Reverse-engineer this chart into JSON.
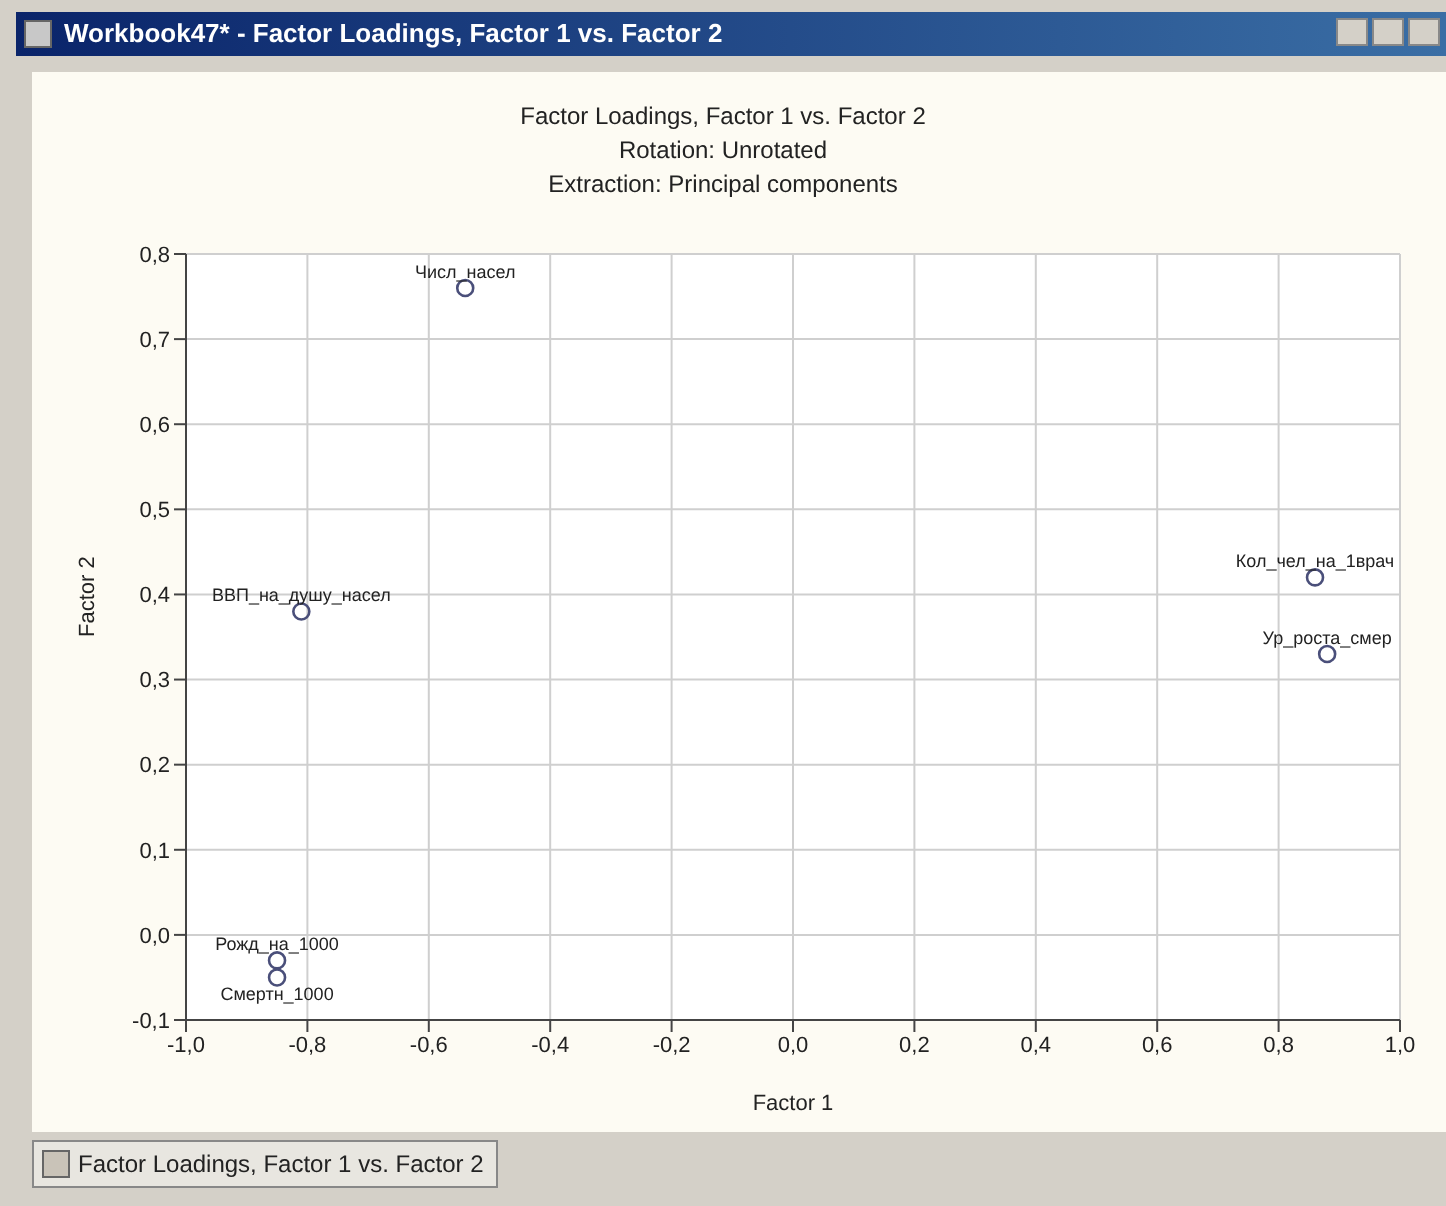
{
  "chart_data": {
    "type": "scatter",
    "title": "Factor Loadings, Factor 1 vs. Factor 2",
    "subtitle": "Rotation: Unrotated\nExtraction: Principal components",
    "xlabel": "Factor 1",
    "ylabel": "Factor 2",
    "x": [
      -0.54,
      -0.81,
      0.86,
      0.88,
      -0.85,
      -0.85
    ],
    "series": [
      {
        "color": "#4a4f7a",
        "values": [
          0.76,
          0.38,
          0.42,
          0.33,
          -0.03,
          -0.05
        ]
      }
    ],
    "marker": "circle",
    "grid": true,
    "legend": false,
    "xlim": [
      -1,
      1
    ],
    "xticks": [
      {
        "value": -1,
        "label": "-1,0"
      },
      {
        "value": -0.8,
        "label": "-0,8"
      },
      {
        "value": -0.6,
        "label": "-0,6"
      },
      {
        "value": -0.4,
        "label": "-0,4"
      },
      {
        "value": -0.2,
        "label": "-0,2"
      },
      {
        "value": 0,
        "label": "0,0"
      },
      {
        "value": 0.2,
        "label": "0,2"
      },
      {
        "value": 0.4,
        "label": "0,4"
      },
      {
        "value": 0.6,
        "label": "0,6"
      },
      {
        "value": 0.8,
        "label": "0,8"
      },
      {
        "value": 1,
        "label": "1,0"
      }
    ],
    "ylim": [
      -0.1,
      0.8
    ],
    "yticks": [
      {
        "value": -0.1,
        "label": "-0,1"
      },
      {
        "value": 0,
        "label": "0,0"
      },
      {
        "value": 0.1,
        "label": "0,1"
      },
      {
        "value": 0.2,
        "label": "0,2"
      },
      {
        "value": 0.3,
        "label": "0,3"
      },
      {
        "value": 0.4,
        "label": "0,4"
      },
      {
        "value": 0.5,
        "label": "0,5"
      },
      {
        "value": 0.6,
        "label": "0,6"
      },
      {
        "value": 0.7,
        "label": "0,7"
      },
      {
        "value": 0.8,
        "label": "0,8"
      }
    ],
    "annotations": [
      {
        "text": "Числ_насел",
        "x": -0.54,
        "y": 0.76
      },
      {
        "text": "ВВП_на_душу_насел",
        "x": -0.81,
        "y": 0.38
      },
      {
        "text": "Кол_чел_на_1врач",
        "x": 0.86,
        "y": 0.42
      },
      {
        "text": "Ур_роста_смер",
        "x": 0.88,
        "y": 0.33
      },
      {
        "text": "Рожд_на_1000",
        "x": -0.85,
        "y": -0.03
      },
      {
        "text": "Смертн_1000",
        "x": -0.85,
        "y": -0.05
      },
      "Workbook47* - Factor Loadings, Factor 1 vs. Factor 2",
      "Factor Loadings, Factor 1 vs. Factor 2"
    ]
  }
}
